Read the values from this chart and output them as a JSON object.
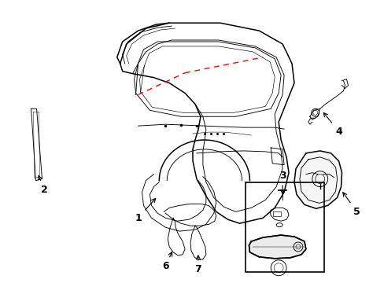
{
  "background_color": "#ffffff",
  "fig_width": 4.89,
  "fig_height": 3.6,
  "dpi": 100,
  "dashed_line_color": "#ff0000",
  "label_fontsize": 9,
  "black": "#000000"
}
